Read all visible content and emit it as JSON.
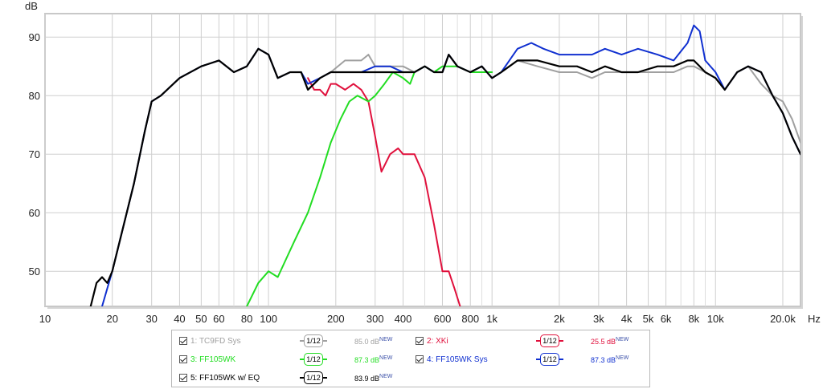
{
  "chart_data": {
    "type": "line",
    "ylabel": "dB",
    "xunit": "Hz",
    "xscale": "log",
    "xlim": [
      10,
      24000
    ],
    "ylim": [
      44,
      94
    ],
    "grid": true,
    "legend_position": "bottom",
    "y_ticks": [
      {
        "value": 50,
        "label": "50"
      },
      {
        "value": 60,
        "label": "60"
      },
      {
        "value": 70,
        "label": "70"
      },
      {
        "value": 80,
        "label": "80"
      },
      {
        "value": 90,
        "label": "90"
      }
    ],
    "x_ticks": [
      {
        "value": 10,
        "label": "10"
      },
      {
        "value": 20,
        "label": "20"
      },
      {
        "value": 30,
        "label": "30"
      },
      {
        "value": 40,
        "label": "40"
      },
      {
        "value": 50,
        "label": "50"
      },
      {
        "value": 60,
        "label": "60"
      },
      {
        "value": 80,
        "label": "80"
      },
      {
        "value": 100,
        "label": "100"
      },
      {
        "value": 200,
        "label": "200"
      },
      {
        "value": 300,
        "label": "300"
      },
      {
        "value": 400,
        "label": "400"
      },
      {
        "value": 600,
        "label": "600"
      },
      {
        "value": 800,
        "label": "800"
      },
      {
        "value": 1000,
        "label": "1k"
      },
      {
        "value": 2000,
        "label": "2k"
      },
      {
        "value": 3000,
        "label": "3k"
      },
      {
        "value": 4000,
        "label": "4k"
      },
      {
        "value": 5000,
        "label": "5k"
      },
      {
        "value": 6000,
        "label": "6k"
      },
      {
        "value": 8000,
        "label": "8k"
      },
      {
        "value": 10000,
        "label": "10k"
      },
      {
        "value": 20000,
        "label": "20.0k"
      }
    ],
    "minor_x_gridlines": [
      70,
      90,
      500,
      700,
      900,
      7000,
      9000
    ],
    "series": [
      {
        "name": "TC9FD Sys",
        "color": "#a0a0a0",
        "width": 2,
        "points": [
          [
            20,
            50
          ],
          [
            25,
            65
          ],
          [
            28,
            74
          ],
          [
            30,
            79
          ],
          [
            33,
            80
          ],
          [
            40,
            83
          ],
          [
            50,
            85
          ],
          [
            60,
            86
          ],
          [
            70,
            84
          ],
          [
            80,
            85
          ],
          [
            90,
            88
          ],
          [
            100,
            87
          ],
          [
            110,
            83
          ],
          [
            125,
            84
          ],
          [
            140,
            84
          ],
          [
            150,
            81
          ],
          [
            170,
            83
          ],
          [
            190,
            84
          ],
          [
            220,
            86
          ],
          [
            260,
            86
          ],
          [
            280,
            87
          ],
          [
            300,
            85
          ],
          [
            350,
            85
          ],
          [
            400,
            85
          ],
          [
            450,
            84
          ],
          [
            500,
            85
          ],
          [
            550,
            84
          ],
          [
            600,
            84
          ],
          [
            640,
            87
          ],
          [
            700,
            85
          ],
          [
            800,
            84
          ],
          [
            900,
            85
          ],
          [
            1000,
            83
          ],
          [
            1100,
            84
          ],
          [
            1300,
            86
          ],
          [
            1600,
            85
          ],
          [
            2000,
            84
          ],
          [
            2400,
            84
          ],
          [
            2800,
            83
          ],
          [
            3200,
            84
          ],
          [
            3800,
            84
          ],
          [
            4500,
            84
          ],
          [
            5500,
            84
          ],
          [
            6500,
            84
          ],
          [
            7500,
            85
          ],
          [
            8000,
            85
          ],
          [
            9000,
            84
          ],
          [
            10000,
            83
          ],
          [
            11000,
            81
          ],
          [
            12500,
            84
          ],
          [
            14000,
            85
          ],
          [
            16000,
            82
          ],
          [
            18000,
            80
          ],
          [
            20000,
            79
          ],
          [
            22000,
            76
          ],
          [
            24000,
            72
          ]
        ]
      },
      {
        "name": "XKi",
        "color": "#e0103c",
        "width": 2,
        "points": [
          [
            150,
            83
          ],
          [
            160,
            81
          ],
          [
            170,
            81
          ],
          [
            180,
            80
          ],
          [
            190,
            82
          ],
          [
            200,
            82
          ],
          [
            220,
            81
          ],
          [
            240,
            82
          ],
          [
            260,
            81
          ],
          [
            280,
            79
          ],
          [
            300,
            73
          ],
          [
            320,
            67
          ],
          [
            350,
            70
          ],
          [
            380,
            71
          ],
          [
            400,
            70
          ],
          [
            450,
            70
          ],
          [
            500,
            66
          ],
          [
            550,
            58
          ],
          [
            600,
            50
          ],
          [
            640,
            50
          ],
          [
            680,
            47
          ],
          [
            720,
            44
          ]
        ]
      },
      {
        "name": "FF105WK",
        "color": "#22dd22",
        "width": 2,
        "points": [
          [
            80,
            44
          ],
          [
            90,
            48
          ],
          [
            100,
            50
          ],
          [
            110,
            49
          ],
          [
            130,
            55
          ],
          [
            150,
            60
          ],
          [
            170,
            66
          ],
          [
            190,
            72
          ],
          [
            210,
            76
          ],
          [
            230,
            79
          ],
          [
            250,
            80
          ],
          [
            280,
            79
          ],
          [
            300,
            80
          ],
          [
            330,
            82
          ],
          [
            360,
            84
          ],
          [
            400,
            83
          ],
          [
            430,
            82
          ],
          [
            450,
            84
          ],
          [
            500,
            85
          ],
          [
            550,
            84
          ],
          [
            600,
            85
          ],
          [
            700,
            85
          ],
          [
            800,
            84
          ],
          [
            1000,
            84
          ]
        ]
      },
      {
        "name": "FF105WK Sys",
        "color": "#1030d0",
        "width": 2,
        "points": [
          [
            18,
            44
          ],
          [
            20,
            50
          ],
          [
            25,
            65
          ],
          [
            28,
            74
          ],
          [
            30,
            79
          ],
          [
            33,
            80
          ],
          [
            40,
            83
          ],
          [
            50,
            85
          ],
          [
            60,
            86
          ],
          [
            70,
            84
          ],
          [
            80,
            85
          ],
          [
            90,
            88
          ],
          [
            100,
            87
          ],
          [
            110,
            83
          ],
          [
            125,
            84
          ],
          [
            140,
            84
          ],
          [
            150,
            82
          ],
          [
            170,
            83
          ],
          [
            190,
            84
          ],
          [
            220,
            84
          ],
          [
            260,
            84
          ],
          [
            300,
            85
          ],
          [
            350,
            85
          ],
          [
            400,
            84
          ],
          [
            450,
            84
          ],
          [
            500,
            85
          ],
          [
            550,
            84
          ],
          [
            600,
            84
          ],
          [
            640,
            87
          ],
          [
            700,
            85
          ],
          [
            800,
            84
          ],
          [
            900,
            85
          ],
          [
            1000,
            83
          ],
          [
            1100,
            84
          ],
          [
            1300,
            88
          ],
          [
            1500,
            89
          ],
          [
            1700,
            88
          ],
          [
            2000,
            87
          ],
          [
            2400,
            87
          ],
          [
            2800,
            87
          ],
          [
            3200,
            88
          ],
          [
            3800,
            87
          ],
          [
            4500,
            88
          ],
          [
            5500,
            87
          ],
          [
            6500,
            86
          ],
          [
            7500,
            89
          ],
          [
            8000,
            92
          ],
          [
            8500,
            91
          ],
          [
            9000,
            86
          ],
          [
            10000,
            84
          ],
          [
            11000,
            81
          ],
          [
            12500,
            84
          ],
          [
            14000,
            85
          ],
          [
            16000,
            84
          ],
          [
            18000,
            80
          ],
          [
            20000,
            77
          ],
          [
            22000,
            73
          ],
          [
            24000,
            70
          ]
        ]
      },
      {
        "name": "FF105WK w/ EQ",
        "color": "#000000",
        "width": 2.2,
        "points": [
          [
            16,
            44
          ],
          [
            17,
            48
          ],
          [
            18,
            49
          ],
          [
            19,
            48
          ],
          [
            20,
            50
          ],
          [
            25,
            65
          ],
          [
            28,
            74
          ],
          [
            30,
            79
          ],
          [
            33,
            80
          ],
          [
            40,
            83
          ],
          [
            50,
            85
          ],
          [
            60,
            86
          ],
          [
            70,
            84
          ],
          [
            80,
            85
          ],
          [
            90,
            88
          ],
          [
            100,
            87
          ],
          [
            110,
            83
          ],
          [
            125,
            84
          ],
          [
            140,
            84
          ],
          [
            150,
            81
          ],
          [
            170,
            83
          ],
          [
            190,
            84
          ],
          [
            220,
            84
          ],
          [
            260,
            84
          ],
          [
            300,
            84
          ],
          [
            350,
            84
          ],
          [
            400,
            84
          ],
          [
            450,
            84
          ],
          [
            500,
            85
          ],
          [
            550,
            84
          ],
          [
            600,
            84
          ],
          [
            640,
            87
          ],
          [
            700,
            85
          ],
          [
            800,
            84
          ],
          [
            900,
            85
          ],
          [
            1000,
            83
          ],
          [
            1100,
            84
          ],
          [
            1300,
            86
          ],
          [
            1600,
            86
          ],
          [
            2000,
            85
          ],
          [
            2400,
            85
          ],
          [
            2800,
            84
          ],
          [
            3200,
            85
          ],
          [
            3800,
            84
          ],
          [
            4500,
            84
          ],
          [
            5500,
            85
          ],
          [
            6500,
            85
          ],
          [
            7500,
            86
          ],
          [
            8000,
            86
          ],
          [
            8500,
            85
          ],
          [
            9000,
            84
          ],
          [
            10000,
            83
          ],
          [
            11000,
            81
          ],
          [
            12500,
            84
          ],
          [
            14000,
            85
          ],
          [
            16000,
            84
          ],
          [
            18000,
            80
          ],
          [
            20000,
            77
          ],
          [
            22000,
            73
          ],
          [
            24000,
            70
          ]
        ]
      }
    ]
  },
  "legend": [
    {
      "index_label": "1: TC9FD Sys",
      "smoothing": "1/12",
      "level": "85.0 dB",
      "new_tag": "NEW",
      "color": "#a0a0a0",
      "checked": true
    },
    {
      "index_label": "2: XKi",
      "smoothing": "1/12",
      "level": "25.5 dB",
      "new_tag": "NEW",
      "color": "#e0103c",
      "checked": true
    },
    {
      "index_label": "3: FF105WK",
      "smoothing": "1/12",
      "level": "87.3 dB",
      "new_tag": "NEW",
      "color": "#22dd22",
      "checked": true
    },
    {
      "index_label": "4: FF105WK Sys",
      "smoothing": "1/12",
      "level": "87.3 dB",
      "new_tag": "NEW",
      "color": "#1030d0",
      "checked": true
    },
    {
      "index_label": "5: FF105WK w/ EQ",
      "smoothing": "1/12",
      "level": "83.9 dB",
      "new_tag": "NEW",
      "color": "#000000",
      "checked": true
    }
  ]
}
